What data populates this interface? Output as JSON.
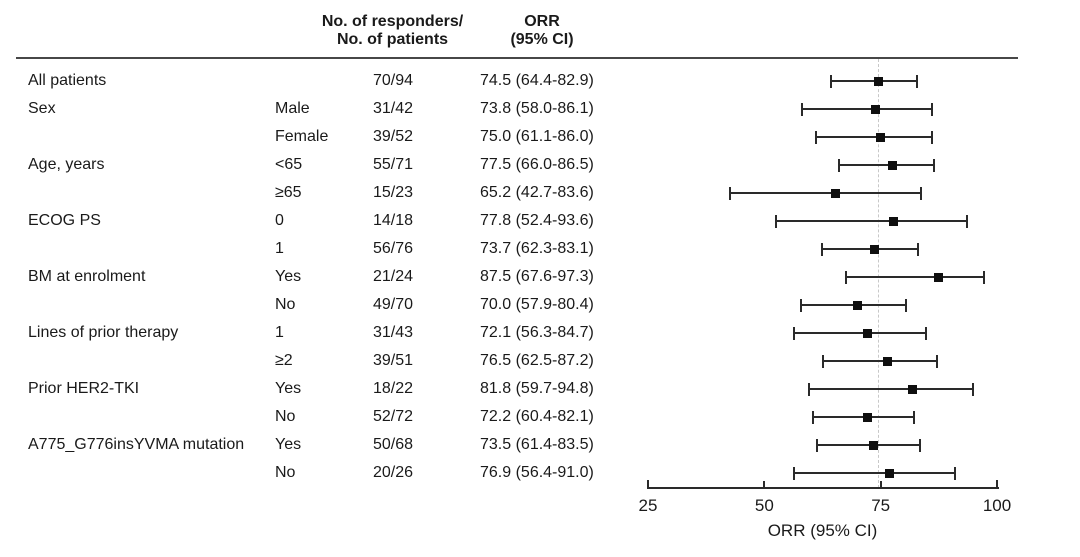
{
  "header": {
    "responders_line1": "No. of responders/",
    "responders_line2": "No. of patients",
    "orr_line1": "ORR",
    "orr_line2": "(95% CI)"
  },
  "chart_data": {
    "type": "forest",
    "title": "",
    "xlabel": "ORR (95% CI)",
    "xlim": [
      25,
      100
    ],
    "xticks": [
      25,
      50,
      75,
      100
    ],
    "xtick_labels": [
      "25",
      "50",
      "75",
      "100"
    ],
    "reference_line": 74.5,
    "grid": false,
    "legend": "none",
    "rows": [
      {
        "group": "All patients",
        "subgroup": "",
        "ratio": "70/94",
        "orr_label": "74.5 (64.4-82.9)",
        "estimate": 74.5,
        "ci_low": 64.4,
        "ci_high": 82.9
      },
      {
        "group": "Sex",
        "subgroup": "Male",
        "ratio": "31/42",
        "orr_label": "73.8 (58.0-86.1)",
        "estimate": 73.8,
        "ci_low": 58.0,
        "ci_high": 86.1
      },
      {
        "group": "",
        "subgroup": "Female",
        "ratio": "39/52",
        "orr_label": "75.0 (61.1-86.0)",
        "estimate": 75.0,
        "ci_low": 61.1,
        "ci_high": 86.0
      },
      {
        "group": "Age, years",
        "subgroup": "<65",
        "ratio": "55/71",
        "orr_label": "77.5 (66.0-86.5)",
        "estimate": 77.5,
        "ci_low": 66.0,
        "ci_high": 86.5
      },
      {
        "group": "",
        "subgroup": "≥65",
        "ratio": "15/23",
        "orr_label": "65.2 (42.7-83.6)",
        "estimate": 65.2,
        "ci_low": 42.7,
        "ci_high": 83.6
      },
      {
        "group": "ECOG PS",
        "subgroup": "0",
        "ratio": "14/18",
        "orr_label": "77.8 (52.4-93.6)",
        "estimate": 77.8,
        "ci_low": 52.4,
        "ci_high": 93.6
      },
      {
        "group": "",
        "subgroup": "1",
        "ratio": "56/76",
        "orr_label": "73.7 (62.3-83.1)",
        "estimate": 73.7,
        "ci_low": 62.3,
        "ci_high": 83.1
      },
      {
        "group": "BM at enrolment",
        "subgroup": "Yes",
        "ratio": "21/24",
        "orr_label": "87.5 (67.6-97.3)",
        "estimate": 87.5,
        "ci_low": 67.6,
        "ci_high": 97.3
      },
      {
        "group": "",
        "subgroup": "No",
        "ratio": "49/70",
        "orr_label": "70.0 (57.9-80.4)",
        "estimate": 70.0,
        "ci_low": 57.9,
        "ci_high": 80.4
      },
      {
        "group": "Lines of prior therapy",
        "subgroup": "1",
        "ratio": "31/43",
        "orr_label": "72.1 (56.3-84.7)",
        "estimate": 72.1,
        "ci_low": 56.3,
        "ci_high": 84.7
      },
      {
        "group": "",
        "subgroup": "≥2",
        "ratio": "39/51",
        "orr_label": "76.5 (62.5-87.2)",
        "estimate": 76.5,
        "ci_low": 62.5,
        "ci_high": 87.2
      },
      {
        "group": "Prior HER2-TKI",
        "subgroup": "Yes",
        "ratio": "18/22",
        "orr_label": "81.8 (59.7-94.8)",
        "estimate": 81.8,
        "ci_low": 59.7,
        "ci_high": 94.8
      },
      {
        "group": "",
        "subgroup": "No",
        "ratio": "52/72",
        "orr_label": "72.2 (60.4-82.1)",
        "estimate": 72.2,
        "ci_low": 60.4,
        "ci_high": 82.1
      },
      {
        "group": "A775_G776insYVMA mutation",
        "subgroup": "Yes",
        "ratio": "50/68",
        "orr_label": "73.5 (61.4-83.5)",
        "estimate": 73.5,
        "ci_low": 61.4,
        "ci_high": 83.5
      },
      {
        "group": "",
        "subgroup": "No",
        "ratio": "20/26",
        "orr_label": "76.9 (56.4-91.0)",
        "estimate": 76.9,
        "ci_low": 56.4,
        "ci_high": 91.0
      }
    ]
  },
  "colors": {
    "text": "#1a1a1a",
    "line": "#2a2a2a",
    "separator": "#474747",
    "marker": "#0f0f0f",
    "reference_dash": "#c8c8c8"
  }
}
